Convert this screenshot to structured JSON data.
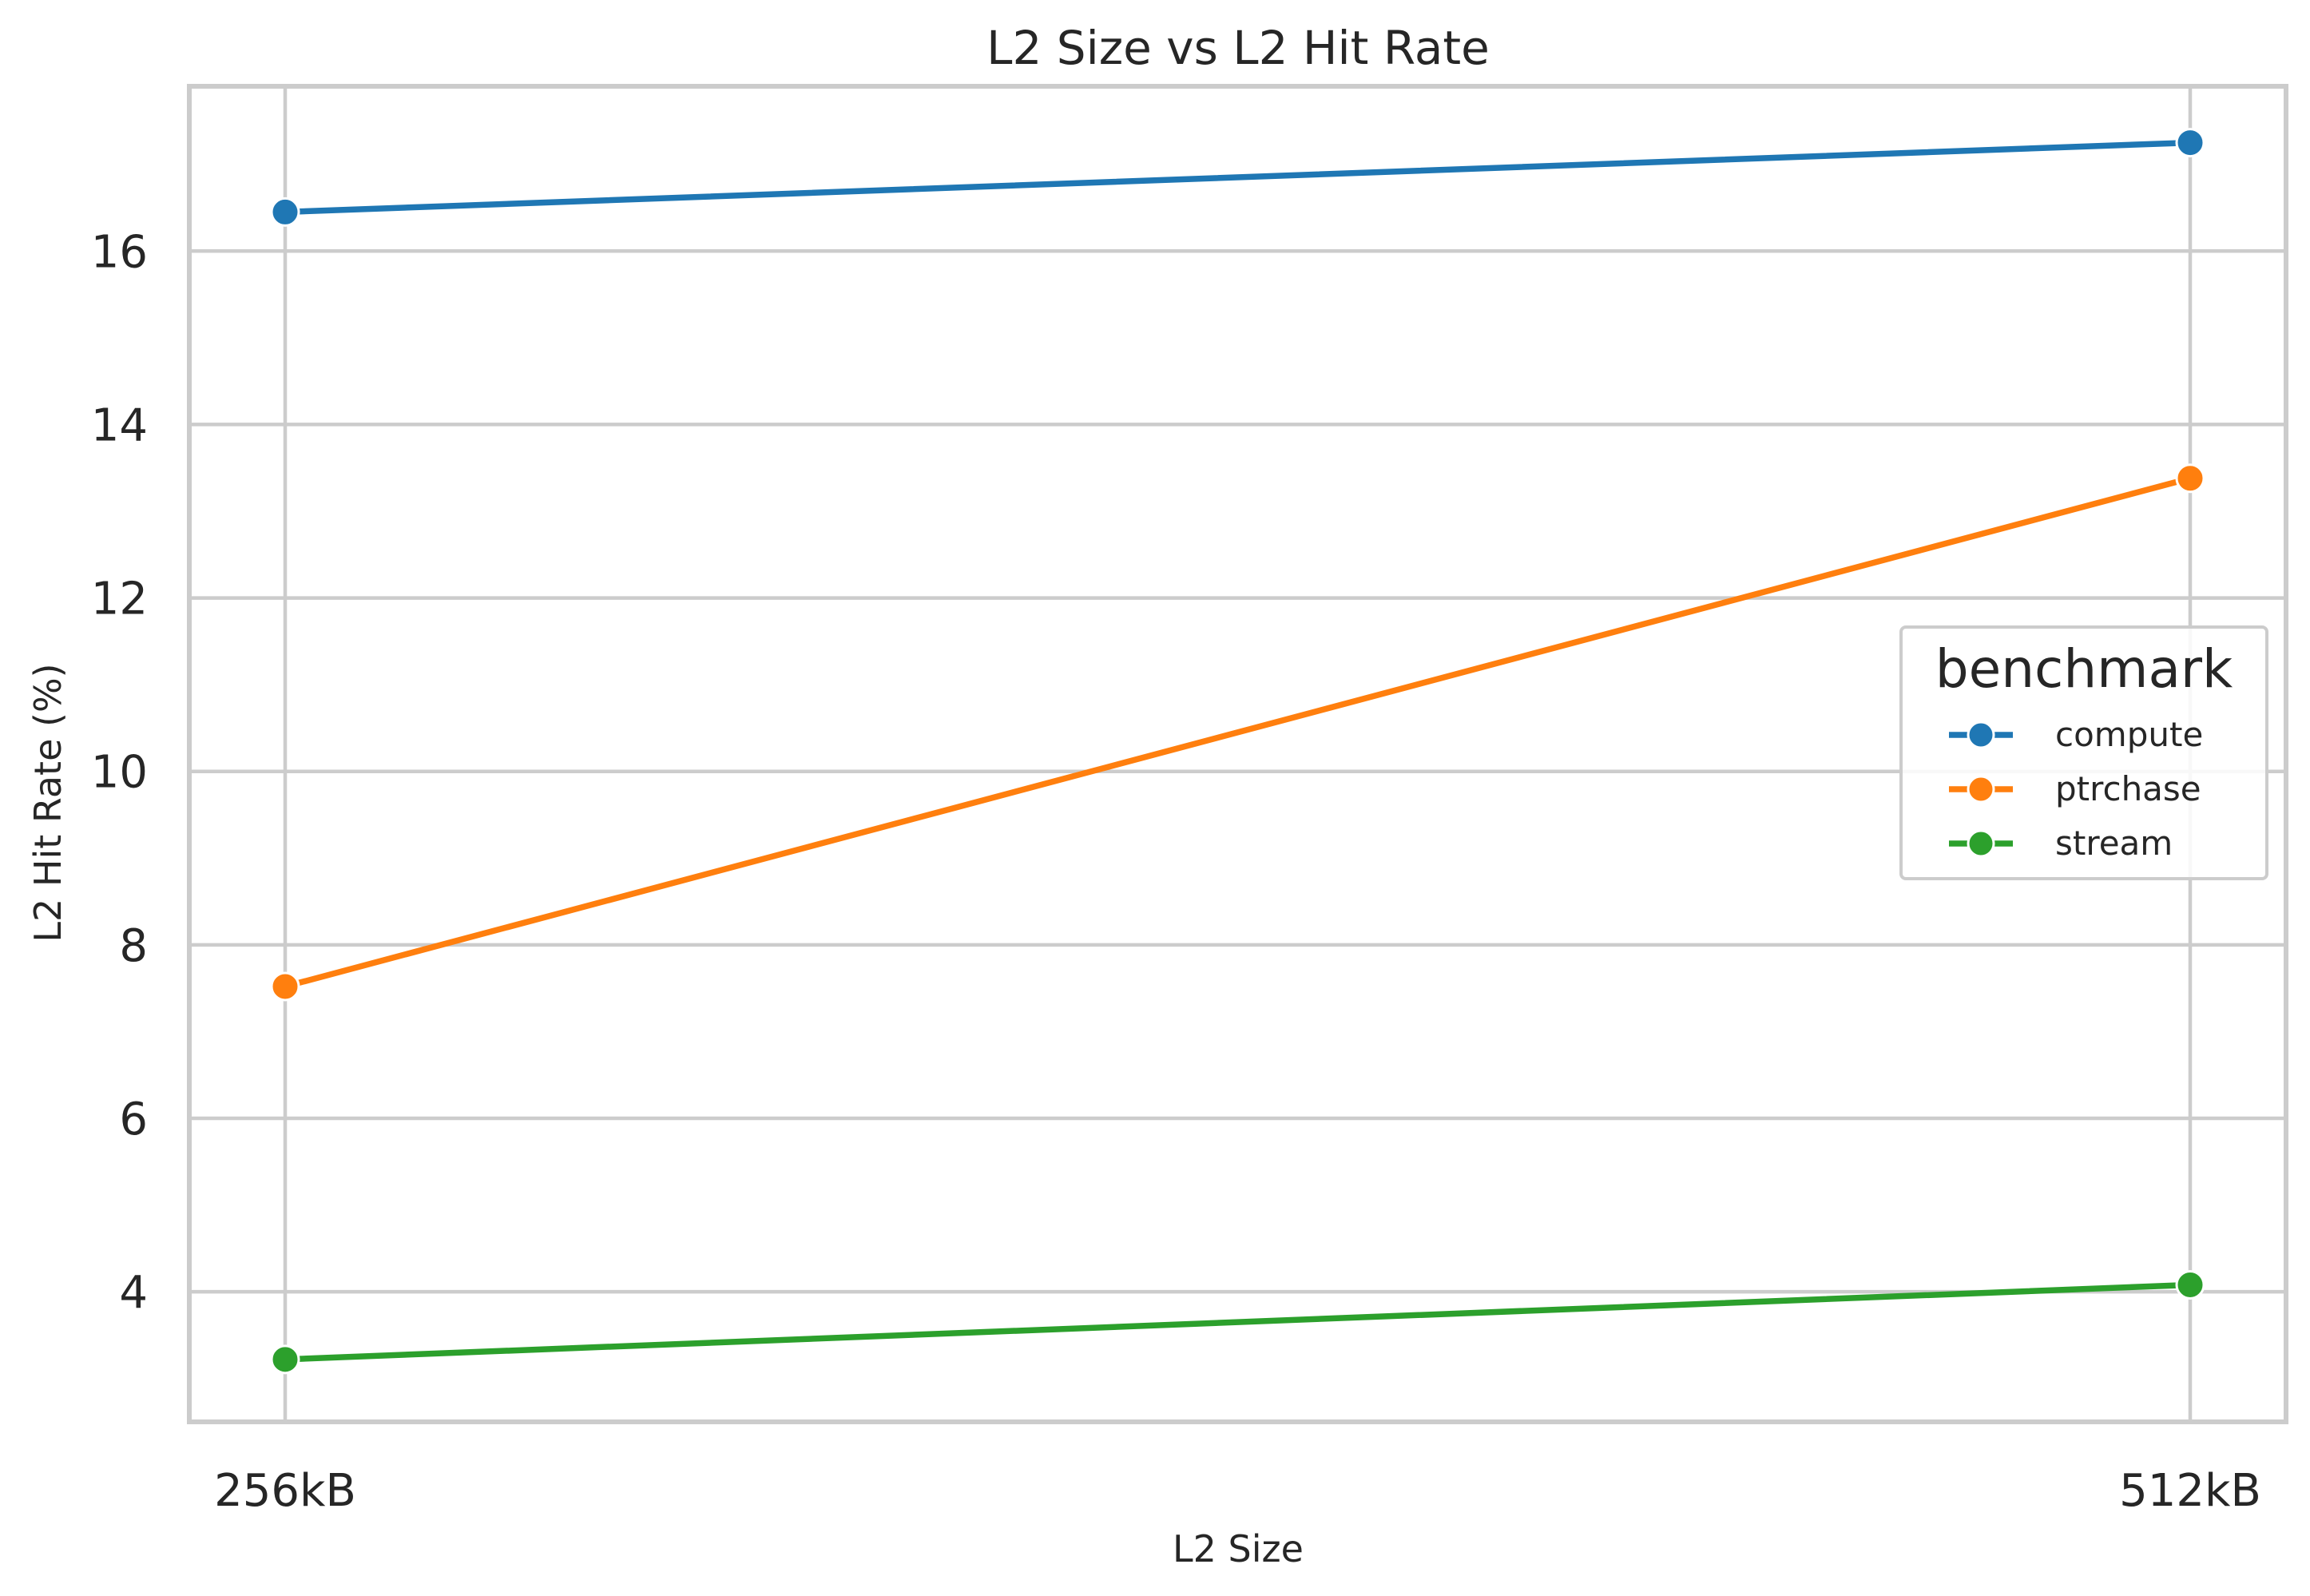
{
  "chart_data": {
    "type": "line",
    "title": "L2 Size vs L2 Hit Rate",
    "xlabel": "L2 Size",
    "ylabel": "L2 Hit Rate (%)",
    "categories": [
      "256kB",
      "512kB"
    ],
    "yticks": [
      4,
      6,
      8,
      10,
      12,
      14,
      16
    ],
    "ylim": [
      2.5,
      17.9
    ],
    "grid": true,
    "legend": {
      "title": "benchmark",
      "placement": "center-right"
    },
    "series": [
      {
        "name": "compute",
        "color": "#1f77b4",
        "values": [
          16.45,
          17.25
        ]
      },
      {
        "name": "ptrchase",
        "color": "#ff7f0e",
        "values": [
          7.52,
          13.38
        ]
      },
      {
        "name": "stream",
        "color": "#2ca02c",
        "values": [
          3.22,
          4.08
        ]
      }
    ]
  }
}
